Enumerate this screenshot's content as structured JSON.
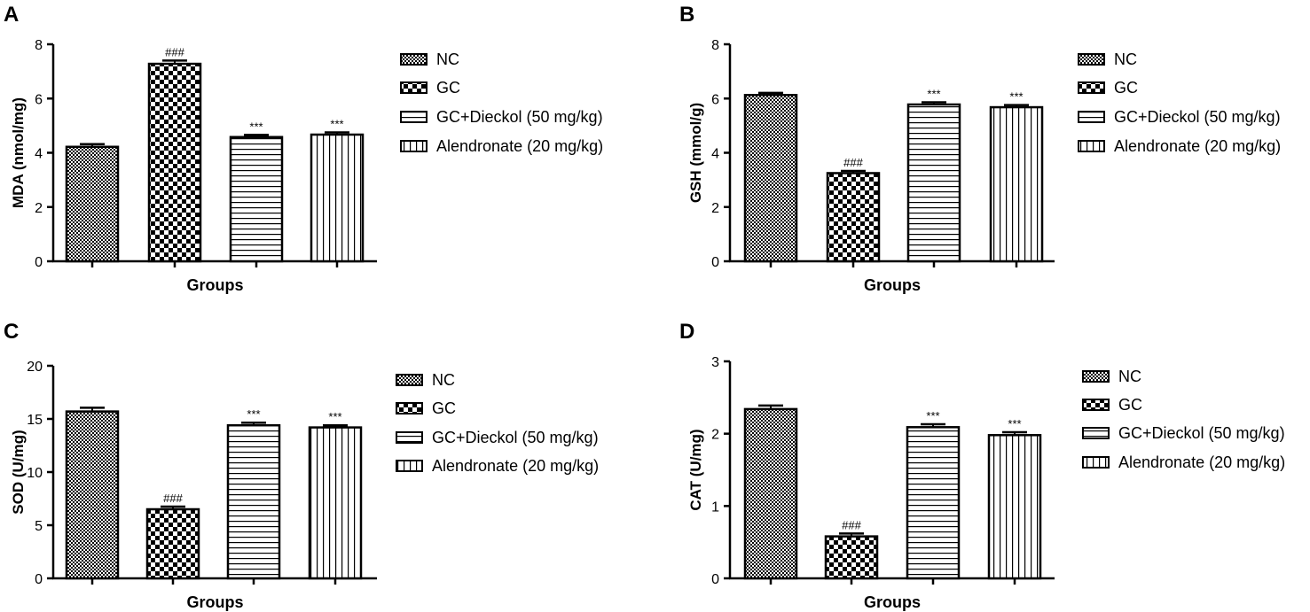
{
  "chart_data": [
    {
      "panel": "A",
      "type": "bar",
      "title": "",
      "xlabel": "Groups",
      "ylabel": "MDA (nmol/mg)",
      "ylim": [
        0,
        8
      ],
      "yticks": [
        0,
        2,
        4,
        6,
        8
      ],
      "categories": [
        "NC",
        "GC",
        "GC+Dieckol (50 mg/kg)",
        "Alendronate (20 mg/kg)"
      ],
      "values": [
        4.22,
        7.28,
        4.58,
        4.67
      ],
      "errors": [
        0.1,
        0.12,
        0.08,
        0.08
      ],
      "annotations": [
        "",
        "###",
        "***",
        "***"
      ],
      "legend": [
        "NC",
        "GC",
        "GC+Dieckol (50 mg/kg)",
        "Alendronate (20 mg/kg)"
      ]
    },
    {
      "panel": "B",
      "type": "bar",
      "title": "",
      "xlabel": "Groups",
      "ylabel": "GSH (mmol/g)",
      "ylim": [
        0,
        8
      ],
      "yticks": [
        0,
        2,
        4,
        6,
        8
      ],
      "categories": [
        "NC",
        "GC",
        "GC+Dieckol (50 mg/kg)",
        "Alendronate (20 mg/kg)"
      ],
      "values": [
        6.13,
        3.25,
        5.78,
        5.68
      ],
      "errors": [
        0.08,
        0.08,
        0.08,
        0.08
      ],
      "annotations": [
        "",
        "###",
        "***",
        "***"
      ],
      "legend": [
        "NC",
        "GC",
        "GC+Dieckol (50 mg/kg)",
        "Alendronate (20 mg/kg)"
      ]
    },
    {
      "panel": "C",
      "type": "bar",
      "title": "",
      "xlabel": "Groups",
      "ylabel": "SOD (U/mg)",
      "ylim": [
        0,
        20
      ],
      "yticks": [
        0,
        5,
        10,
        15,
        20
      ],
      "categories": [
        "NC",
        "GC",
        "GC+Dieckol (50 mg/kg)",
        "Alendronate (20 mg/kg)"
      ],
      "values": [
        15.7,
        6.5,
        14.4,
        14.2
      ],
      "errors": [
        0.35,
        0.25,
        0.25,
        0.2
      ],
      "annotations": [
        "",
        "###",
        "***",
        "***"
      ],
      "legend": [
        "NC",
        "GC",
        "GC+Dieckol (50 mg/kg)",
        "Alendronate (20 mg/kg)"
      ]
    },
    {
      "panel": "D",
      "type": "bar",
      "title": "",
      "xlabel": "Groups",
      "ylabel": "CAT (U/mg)",
      "ylim": [
        0,
        3
      ],
      "yticks": [
        0,
        1,
        2,
        3
      ],
      "categories": [
        "NC",
        "GC",
        "GC+Dieckol (50 mg/kg)",
        "Alendronate (20 mg/kg)"
      ],
      "values": [
        2.34,
        0.58,
        2.09,
        1.98
      ],
      "errors": [
        0.05,
        0.04,
        0.04,
        0.04
      ],
      "annotations": [
        "",
        "###",
        "***",
        "***"
      ],
      "legend": [
        "NC",
        "GC",
        "GC+Dieckol (50 mg/kg)",
        "Alendronate (20 mg/kg)"
      ]
    }
  ]
}
